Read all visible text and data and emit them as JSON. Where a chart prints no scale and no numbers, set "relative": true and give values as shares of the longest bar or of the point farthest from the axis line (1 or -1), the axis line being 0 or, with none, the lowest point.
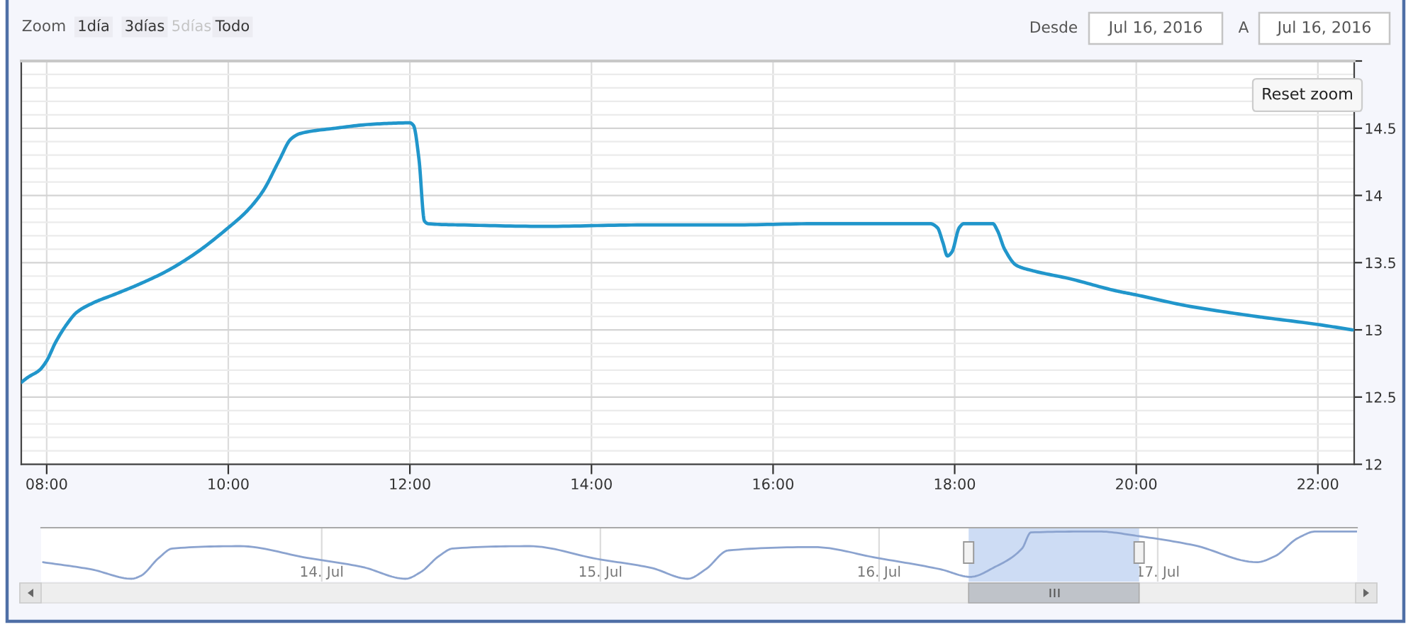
{
  "chart_data": [
    {
      "type": "line",
      "annotations": [
        "Zoom",
        "1día",
        "3días",
        "5días",
        "Todo",
        "Desde",
        "Jul 16, 2016",
        "A",
        "Jul 16, 2016",
        "Reset zoom"
      ],
      "x": [
        7.72,
        7.8,
        7.92,
        8.0,
        8.1,
        8.23,
        8.33,
        8.51,
        8.77,
        9.02,
        9.33,
        9.64,
        10.0,
        10.2,
        10.38,
        10.56,
        10.69,
        10.79,
        11.18,
        11.59,
        12.0,
        12.04,
        12.1,
        12.16,
        12.2,
        12.6,
        13.5,
        14.5,
        15.5,
        16.5,
        17.73,
        17.81,
        17.87,
        17.92,
        17.97,
        18.05,
        18.1,
        18.42,
        18.47,
        18.55,
        18.68,
        18.86,
        19.27,
        19.78,
        20.0,
        20.55,
        21.32,
        22.0,
        22.38
      ],
      "values": [
        12.61,
        12.65,
        12.7,
        12.77,
        12.91,
        13.05,
        13.13,
        13.2,
        13.27,
        13.34,
        13.44,
        13.57,
        13.76,
        13.88,
        14.03,
        14.26,
        14.42,
        14.46,
        14.5,
        14.53,
        14.54,
        14.52,
        14.27,
        13.81,
        13.79,
        13.78,
        13.77,
        13.78,
        13.78,
        13.79,
        13.79,
        13.76,
        13.65,
        13.55,
        13.58,
        13.76,
        13.79,
        13.79,
        13.74,
        13.6,
        13.48,
        13.44,
        13.38,
        13.29,
        13.26,
        13.18,
        13.1,
        13.04,
        13.0
      ],
      "color": "#2196cb",
      "xlim": [
        7.72,
        22.4
      ],
      "xticks": [
        {
          "value": 8,
          "label": "08:00"
        },
        {
          "value": 10,
          "label": "10:00"
        },
        {
          "value": 12,
          "label": "12:00"
        },
        {
          "value": 14,
          "label": "14:00"
        },
        {
          "value": 16,
          "label": "16:00"
        },
        {
          "value": 18,
          "label": "18:00"
        },
        {
          "value": 20,
          "label": "20:00"
        },
        {
          "value": 22,
          "label": "22:00"
        }
      ],
      "ylim": [
        12,
        15
      ],
      "yticks": [
        12,
        12.5,
        13,
        13.5,
        14,
        14.5,
        {
          "value": 15,
          "label": null
        }
      ],
      "grid": true
    },
    {
      "type": "line",
      "relative": true,
      "x": [
        "2016-07-13T00:00",
        "2016-07-13T04:08",
        "2016-07-13T07:38",
        "2016-07-13T08:24",
        "2016-07-13T09:58",
        "2016-07-13T11:08",
        "2016-07-13T16:57",
        "2016-07-13T22:47",
        "2016-07-14T03:29",
        "2016-07-14T07:13",
        "2016-07-14T08:31",
        "2016-07-14T10:06",
        "2016-07-14T11:17",
        "2016-07-14T17:53",
        "2016-07-14T23:43",
        "2016-07-15T04:23",
        "2016-07-15T07:31",
        "2016-07-15T09:04",
        "2016-07-15T11:01",
        "2016-07-15T18:23",
        "2016-07-15T23:51",
        "2016-07-16T05:18",
        "2016-07-16T07:52",
        "2016-07-16T09:59",
        "2016-07-16T12:19",
        "2016-07-16T13:05",
        "2016-07-16T18:56",
        "2016-07-16T22:25",
        "2016-07-17T03:06",
        "2016-07-17T08:32",
        "2016-07-17T10:07",
        "2016-07-17T12:04",
        "2016-07-17T13:36",
        "2016-07-17T17:07"
      ],
      "values": [
        0.35,
        0.2,
        0.0,
        0.06,
        0.44,
        0.64,
        0.69,
        0.44,
        0.25,
        0.0,
        0.14,
        0.48,
        0.64,
        0.69,
        0.42,
        0.23,
        0.0,
        0.2,
        0.6,
        0.67,
        0.44,
        0.2,
        0.04,
        0.25,
        0.64,
        0.98,
        1.0,
        0.9,
        0.71,
        0.35,
        0.48,
        0.86,
        1.0,
        1.0
      ],
      "color": "#8ba3cf",
      "xlim": [
        "2016-07-12T23:50",
        "2016-07-17T17:10"
      ],
      "xticks": [
        {
          "value": "2016-07-14",
          "label": "14. Jul"
        },
        {
          "value": "2016-07-15",
          "label": "15. Jul"
        },
        {
          "value": "2016-07-16",
          "label": "16. Jul"
        },
        {
          "value": "2016-07-17",
          "label": "17. Jul"
        }
      ],
      "bands": [
        {
          "axis": "x",
          "from": "2016-07-16T07:43",
          "to": "2016-07-16T22:24",
          "color": "#cddcf4"
        }
      ],
      "grid": "x",
      "tick_labels": "x"
    }
  ]
}
